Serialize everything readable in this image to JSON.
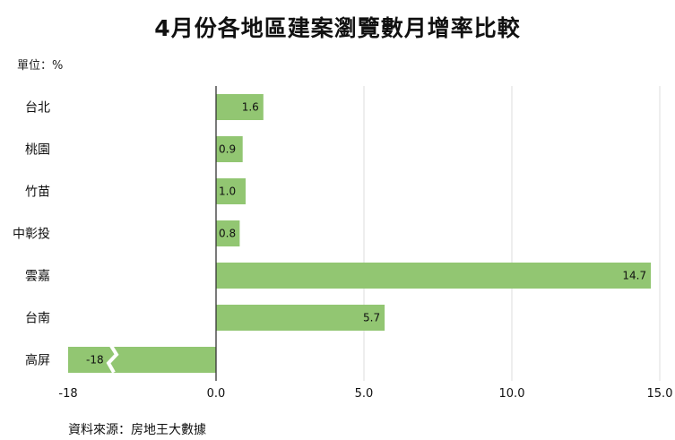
{
  "title": "4月份各地區建案瀏覽數月增率比較",
  "unit_label": "單位：%",
  "source": "資料來源：房地王大數據",
  "colors": {
    "bar": "#92c672",
    "grid": "#dddddd",
    "axis": "#333333"
  },
  "chart_data": {
    "type": "bar",
    "orientation": "horizontal",
    "categories": [
      "台北",
      "桃園",
      "竹苗",
      "中彰投",
      "雲嘉",
      "台南",
      "高屏"
    ],
    "values": [
      1.6,
      0.9,
      1.0,
      0.8,
      14.7,
      5.7,
      -18
    ],
    "value_labels": [
      "1.6",
      "0.9",
      "1.0",
      "0.8",
      "14.7",
      "5.7",
      "-18"
    ],
    "x_ticks": [
      "-18",
      "0.0",
      "5.0",
      "10.0",
      "15.0"
    ],
    "x_tick_values": [
      -5,
      0,
      5,
      10,
      15
    ],
    "xlim": [
      -5,
      15
    ],
    "axis_break": true,
    "grid": true
  }
}
